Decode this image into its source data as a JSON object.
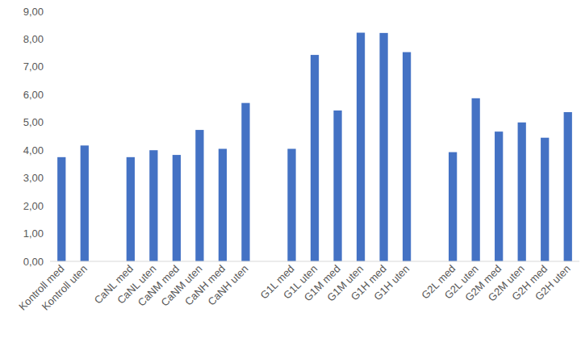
{
  "chart_data": {
    "type": "bar",
    "categories": [
      "Kontroll med",
      "Kontroll uten",
      null,
      "CaNL med",
      "CaNL uten",
      "CaNM med",
      "CaNM uten",
      "CaNH med",
      "CaNH uten",
      null,
      "G1L med",
      "G1L uten",
      "G1M med",
      "G1M uten",
      "G1H med",
      "G1H uten",
      null,
      "G2L med",
      "G2L uten",
      "G2M med",
      "G2M uten",
      "G2H med",
      "G2H uten"
    ],
    "values": [
      3.75,
      4.17,
      null,
      3.75,
      4.0,
      3.83,
      4.73,
      4.05,
      5.7,
      null,
      4.05,
      7.43,
      5.43,
      8.23,
      8.22,
      7.53,
      null,
      3.93,
      5.87,
      4.67,
      5.0,
      4.45,
      5.37
    ],
    "color": "#4472c4",
    "ylim": [
      0,
      9
    ],
    "yticks": [
      {
        "value": 0,
        "label": "0,00"
      },
      {
        "value": 1,
        "label": "1,00"
      },
      {
        "value": 2,
        "label": "2,00"
      },
      {
        "value": 3,
        "label": "3,00"
      },
      {
        "value": 4,
        "label": "4,00"
      },
      {
        "value": 5,
        "label": "5,00"
      },
      {
        "value": 6,
        "label": "6,00"
      },
      {
        "value": 7,
        "label": "7,00"
      },
      {
        "value": 8,
        "label": "8,00"
      },
      {
        "value": 9,
        "label": "9,00"
      }
    ],
    "grid": false
  }
}
